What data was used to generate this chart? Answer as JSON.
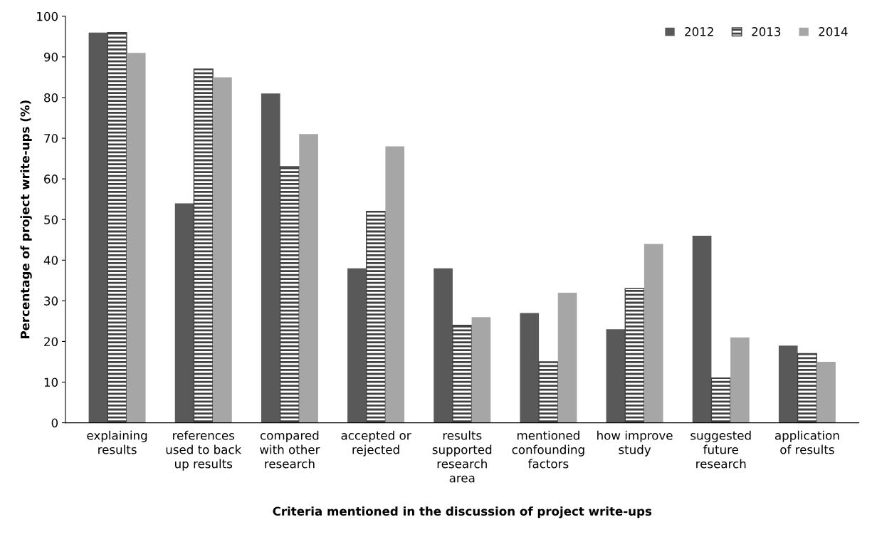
{
  "chart_data": {
    "type": "bar",
    "xlabel": "Criteria mentioned in the discussion of project write-ups",
    "ylabel": "Percentage of project write-ups (%)",
    "categories": [
      "explaining\nresults",
      "references\nused to back\nup results",
      "compared\nwith other\nresearch",
      "accepted or\nrejected",
      "results\nsupported\nresearch\narea",
      "mentioned\nconfounding\nfactors",
      "how improve\nstudy",
      "suggested\nfuture\nresearch",
      "application\nof results"
    ],
    "series": [
      {
        "name": "2012",
        "color": "#595959",
        "values": [
          96,
          54,
          81,
          38,
          38,
          27,
          23,
          46,
          19
        ]
      },
      {
        "name": "2013",
        "color": "#404040",
        "values": [
          96,
          87,
          63,
          52,
          24,
          15,
          33,
          11,
          17
        ]
      },
      {
        "name": "2014",
        "color": "#a6a6a6",
        "values": [
          91,
          85,
          71,
          68,
          26,
          32,
          44,
          21,
          15
        ]
      }
    ],
    "ylim": [
      0,
      100
    ],
    "yticks": [
      0,
      10,
      20,
      30,
      40,
      50,
      60,
      70,
      80,
      90,
      100
    ],
    "grid": false,
    "legend": "top right"
  }
}
